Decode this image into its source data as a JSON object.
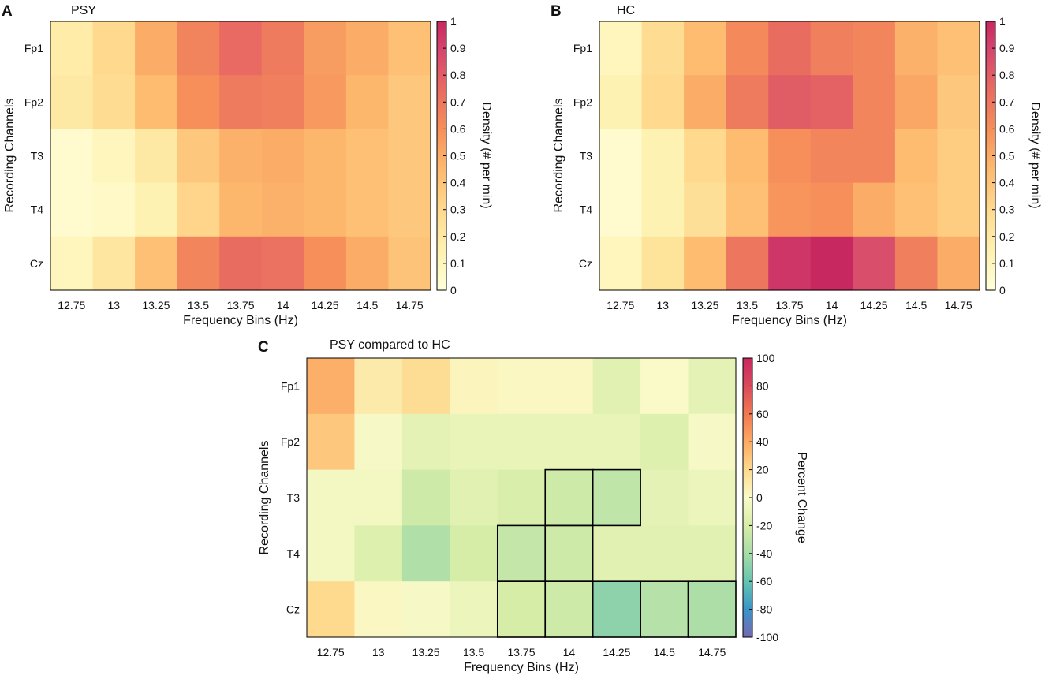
{
  "chart_data": [
    {
      "type": "heatmap",
      "panel": "A",
      "title": "PSY",
      "xlabel": "Frequency Bins (Hz)",
      "ylabel": "Recording Channels",
      "x": [
        "12.75",
        "13",
        "13.25",
        "13.5",
        "13.75",
        "14",
        "14.25",
        "14.5",
        "14.75"
      ],
      "y": [
        "Fp1",
        "Fp2",
        "T3",
        "T4",
        "Cz"
      ],
      "values": [
        [
          0.18,
          0.3,
          0.5,
          0.65,
          0.75,
          0.68,
          0.55,
          0.5,
          0.42
        ],
        [
          0.2,
          0.28,
          0.44,
          0.6,
          0.68,
          0.66,
          0.56,
          0.46,
          0.38
        ],
        [
          0.04,
          0.1,
          0.2,
          0.38,
          0.48,
          0.5,
          0.46,
          0.42,
          0.38
        ],
        [
          0.04,
          0.06,
          0.14,
          0.32,
          0.46,
          0.48,
          0.46,
          0.42,
          0.38
        ],
        [
          0.1,
          0.22,
          0.42,
          0.64,
          0.74,
          0.72,
          0.6,
          0.5,
          0.4
        ]
      ],
      "colorbar": {
        "label": "Density (# per min)",
        "range": [
          0,
          1
        ],
        "ticks": [
          "0",
          "0.1",
          "0.2",
          "0.3",
          "0.4",
          "0.5",
          "0.6",
          "0.7",
          "0.8",
          "0.9",
          "1"
        ]
      }
    },
    {
      "type": "heatmap",
      "panel": "B",
      "title": "HC",
      "xlabel": "Frequency Bins (Hz)",
      "ylabel": "Recording Channels",
      "x": [
        "12.75",
        "13",
        "13.25",
        "13.5",
        "13.75",
        "14",
        "14.25",
        "14.5",
        "14.75"
      ],
      "y": [
        "Fp1",
        "Fp2",
        "T3",
        "T4",
        "Cz"
      ],
      "values": [
        [
          0.1,
          0.28,
          0.44,
          0.62,
          0.74,
          0.66,
          0.64,
          0.48,
          0.42
        ],
        [
          0.14,
          0.3,
          0.5,
          0.68,
          0.8,
          0.78,
          0.64,
          0.52,
          0.38
        ],
        [
          0.04,
          0.14,
          0.3,
          0.44,
          0.6,
          0.64,
          0.64,
          0.44,
          0.36
        ],
        [
          0.04,
          0.14,
          0.26,
          0.42,
          0.58,
          0.6,
          0.5,
          0.42,
          0.36
        ],
        [
          0.1,
          0.24,
          0.44,
          0.7,
          0.95,
          1.0,
          0.86,
          0.66,
          0.5
        ]
      ],
      "colorbar": {
        "label": "Density (# per min)",
        "range": [
          0,
          1
        ],
        "ticks": [
          "0",
          "0.1",
          "0.2",
          "0.3",
          "0.4",
          "0.5",
          "0.6",
          "0.7",
          "0.8",
          "0.9",
          "1"
        ]
      }
    },
    {
      "type": "heatmap",
      "panel": "C",
      "title": "PSY compared to HC",
      "xlabel": "Frequency Bins (Hz)",
      "ylabel": "Recording Channels",
      "x": [
        "12.75",
        "13",
        "13.25",
        "13.5",
        "13.75",
        "14",
        "14.25",
        "14.5",
        "14.75"
      ],
      "y": [
        "Fp1",
        "Fp2",
        "T3",
        "T4",
        "Cz"
      ],
      "values": [
        [
          38,
          10,
          18,
          4,
          2,
          2,
          -14,
          0,
          -12
        ],
        [
          28,
          -2,
          -12,
          -10,
          -10,
          -10,
          -10,
          -16,
          -2
        ],
        [
          -4,
          -4,
          -24,
          -14,
          -18,
          -24,
          -30,
          -12,
          -8
        ],
        [
          -4,
          -16,
          -36,
          -20,
          -28,
          -24,
          -14,
          -14,
          -14
        ],
        [
          20,
          2,
          -2,
          -8,
          -20,
          -24,
          -48,
          -34,
          -38
        ]
      ],
      "significant_cells": [
        [
          2,
          5
        ],
        [
          2,
          6
        ],
        [
          3,
          4
        ],
        [
          3,
          5
        ],
        [
          4,
          4
        ],
        [
          4,
          5
        ],
        [
          4,
          6
        ],
        [
          4,
          7
        ],
        [
          4,
          8
        ]
      ],
      "colorbar": {
        "label": "Percent Change",
        "range": [
          -100,
          100
        ],
        "ticks": [
          "-100",
          "-80",
          "-60",
          "-40",
          "-20",
          "0",
          "20",
          "40",
          "60",
          "80",
          "100"
        ]
      }
    }
  ]
}
